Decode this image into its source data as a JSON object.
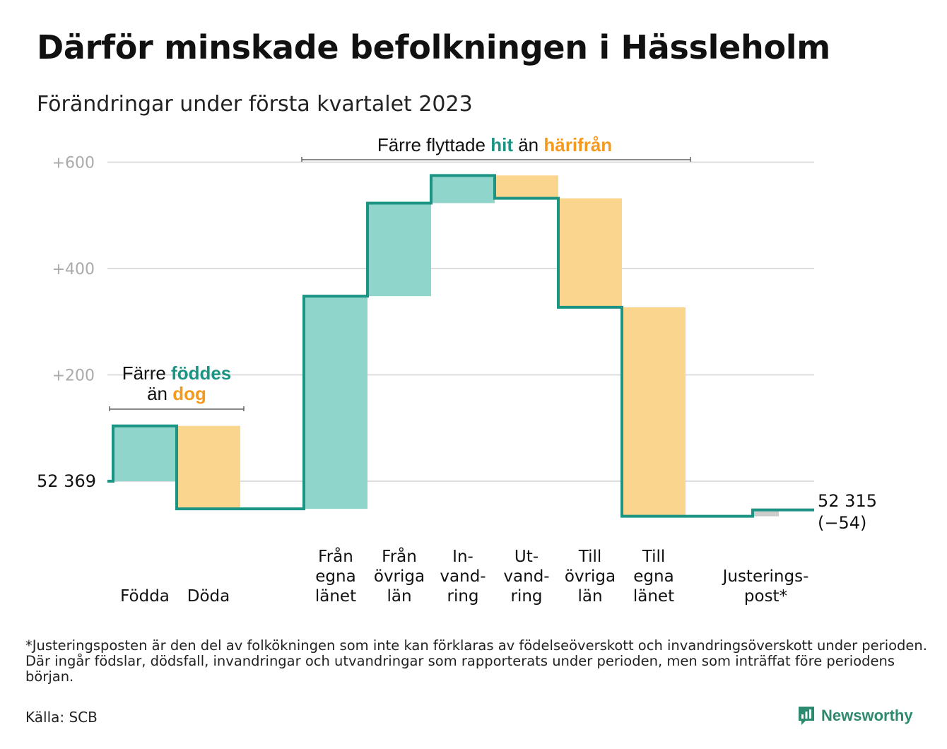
{
  "title": "Därför minskade befolkningen i Hässleholm",
  "subtitle": "Förändringar under första kvartalet 2023",
  "footnote": "*Justeringsposten är den del av folkökningen som inte kan förklaras av födelseöverskott och invandringsöverskott under perioden. Där ingår födslar, dödsfall, invandringar och utvandringar som rapporterats under perioden, men som inträffat före periodens början.",
  "source": "Källa: SCB",
  "brand": {
    "name": "Newsworthy",
    "icon": "newsworthy-logo-icon"
  },
  "colors": {
    "line": "#1b9484",
    "positive": "#8fd5cc",
    "negative": "#fad58e",
    "adjustment": "#cccccc",
    "hit": "#1b9484",
    "harifran": "#f39a1e",
    "grid": "#dddddd",
    "tick": "#aaaaaa"
  },
  "chart_data": {
    "type": "bar",
    "subtype": "waterfall",
    "start": {
      "label": "52 369",
      "value": 52369
    },
    "end": {
      "label": "52 315",
      "change_label": "(−54)",
      "value": 52315
    },
    "y_ticks": [
      {
        "value": 200,
        "label": "+200"
      },
      {
        "value": 400,
        "label": "+400"
      },
      {
        "value": 600,
        "label": "+600"
      }
    ],
    "ylim": [
      -70,
      620
    ],
    "grid": true,
    "categories": [
      {
        "label_lines": [
          "Födda"
        ],
        "value": 104
      },
      {
        "label_lines": [
          "Döda"
        ],
        "value": -156
      },
      {
        "label_lines": [
          "Från",
          "egna",
          "länet"
        ],
        "value": 400
      },
      {
        "label_lines": [
          "Från",
          "övriga",
          "län"
        ],
        "value": 175
      },
      {
        "label_lines": [
          "In-",
          "vand-",
          "ring"
        ],
        "value": 52
      },
      {
        "label_lines": [
          "Ut-",
          "vand-",
          "ring"
        ],
        "value": -43
      },
      {
        "label_lines": [
          "Till",
          "övriga",
          "län"
        ],
        "value": -205
      },
      {
        "label_lines": [
          "Till",
          "egna",
          "länet"
        ],
        "value": -393
      },
      {
        "label_lines": [
          "Justerings-",
          "post*"
        ],
        "value": 12
      }
    ],
    "annotations": [
      {
        "id": "births",
        "parts": [
          {
            "text": "Färre ",
            "tone": "plain"
          },
          {
            "text": "föddes",
            "tone": "hit"
          },
          {
            "text": "än ",
            "tone": "plain"
          },
          {
            "text": "dog",
            "tone": "harifran"
          }
        ]
      },
      {
        "id": "migration",
        "parts": [
          {
            "text": "Färre flyttade ",
            "tone": "plain"
          },
          {
            "text": "hit",
            "tone": "hit"
          },
          {
            "text": " än ",
            "tone": "plain"
          },
          {
            "text": "härifrån",
            "tone": "harifran"
          }
        ]
      }
    ]
  }
}
